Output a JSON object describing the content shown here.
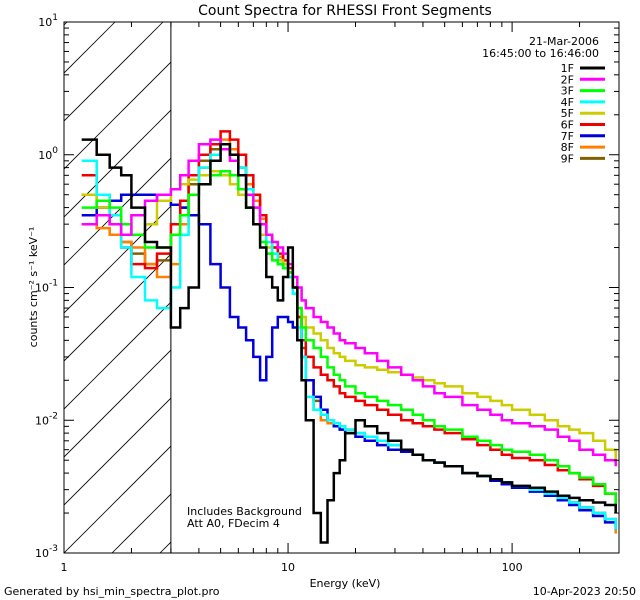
{
  "chart_data": {
    "type": "line",
    "title": "Count Spectra for RHESSI Front Segments",
    "xlabel": "Energy (keV)",
    "ylabel": "counts cm⁻² s⁻¹ keV⁻¹",
    "xscale": "log",
    "yscale": "log",
    "xlim": [
      1,
      300
    ],
    "ylim": [
      0.001,
      10
    ],
    "x_ticks": [
      {
        "v": 1,
        "label": "1"
      },
      {
        "v": 10,
        "label": "10"
      },
      {
        "v": 100,
        "label": "100"
      }
    ],
    "y_ticks": [
      {
        "v": 0.001,
        "base": "10",
        "exp": "-3"
      },
      {
        "v": 0.01,
        "base": "10",
        "exp": "-2"
      },
      {
        "v": 0.1,
        "base": "10",
        "exp": "-1"
      },
      {
        "v": 1,
        "base": "10",
        "exp": "0"
      },
      {
        "v": 10,
        "base": "10",
        "exp": "1"
      }
    ],
    "hatched_region": [
      1,
      3
    ],
    "date": "21-Mar-2006",
    "time_range": "16:45:00 to 16:46:00",
    "notes": [
      "Includes Background",
      "Att A0, FDecim 4"
    ],
    "series": [
      {
        "name": "1F",
        "color": "#000000",
        "x": [
          1.2,
          1.4,
          1.6,
          1.8,
          2.0,
          2.3,
          2.6,
          3.0,
          3.3,
          3.6,
          4.0,
          4.5,
          5.0,
          5.5,
          6.0,
          6.5,
          7.0,
          7.5,
          8.0,
          8.5,
          9.0,
          9.5,
          10.0,
          10.5,
          11.0,
          11.5,
          12.0,
          13,
          14,
          15,
          16,
          17,
          18,
          20,
          22,
          25,
          28,
          32,
          36,
          40,
          45,
          50,
          60,
          70,
          80,
          90,
          100,
          120,
          140,
          160,
          180,
          200,
          230,
          260,
          290
        ],
        "y": [
          1.3,
          1.0,
          0.8,
          0.7,
          0.4,
          0.22,
          0.2,
          0.05,
          0.07,
          0.1,
          0.6,
          0.9,
          1.2,
          1.0,
          0.7,
          0.4,
          0.3,
          0.2,
          0.12,
          0.1,
          0.08,
          0.12,
          0.2,
          0.1,
          0.04,
          0.02,
          0.01,
          0.002,
          0.0012,
          0.0025,
          0.004,
          0.005,
          0.008,
          0.01,
          0.009,
          0.008,
          0.007,
          0.006,
          0.0055,
          0.005,
          0.0048,
          0.0045,
          0.004,
          0.0038,
          0.0036,
          0.0034,
          0.0032,
          0.0031,
          0.0029,
          0.0027,
          0.0026,
          0.0025,
          0.0024,
          0.0023,
          0.002
        ]
      },
      {
        "name": "2F",
        "color": "#ff00ff",
        "x": [
          1.2,
          1.4,
          1.6,
          1.8,
          2.0,
          2.3,
          2.6,
          3.0,
          3.3,
          3.6,
          4.0,
          4.5,
          5.0,
          5.5,
          6.0,
          6.5,
          7.0,
          7.5,
          8.0,
          8.5,
          9.0,
          9.5,
          10.0,
          10.5,
          11.0,
          11.5,
          12.0,
          13,
          14,
          15,
          16,
          17,
          18,
          20,
          22,
          25,
          28,
          32,
          36,
          40,
          45,
          50,
          60,
          70,
          80,
          90,
          100,
          120,
          140,
          160,
          180,
          200,
          230,
          260,
          290
        ],
        "y": [
          0.3,
          0.35,
          0.3,
          0.25,
          0.35,
          0.45,
          0.5,
          0.55,
          0.7,
          0.9,
          1.2,
          1.3,
          1.1,
          0.9,
          0.7,
          0.5,
          0.4,
          0.3,
          0.25,
          0.22,
          0.2,
          0.18,
          0.15,
          0.12,
          0.1,
          0.08,
          0.07,
          0.06,
          0.055,
          0.05,
          0.045,
          0.04,
          0.038,
          0.035,
          0.032,
          0.028,
          0.025,
          0.022,
          0.02,
          0.018,
          0.016,
          0.015,
          0.013,
          0.012,
          0.011,
          0.01,
          0.0095,
          0.009,
          0.0085,
          0.0075,
          0.007,
          0.006,
          0.0055,
          0.005,
          0.0045
        ]
      },
      {
        "name": "3F",
        "color": "#00ff00",
        "x": [
          1.2,
          1.4,
          1.6,
          1.8,
          2.0,
          2.3,
          2.6,
          3.0,
          3.3,
          3.6,
          4.0,
          4.5,
          5.0,
          5.5,
          6.0,
          6.5,
          7.0,
          7.5,
          8.0,
          8.5,
          9.0,
          9.5,
          10.0,
          10.5,
          11.0,
          11.5,
          12.0,
          13,
          14,
          15,
          16,
          17,
          18,
          20,
          22,
          25,
          28,
          32,
          36,
          40,
          45,
          50,
          60,
          70,
          80,
          90,
          100,
          120,
          140,
          160,
          180,
          200,
          230,
          260,
          290
        ],
        "y": [
          0.4,
          0.45,
          0.4,
          0.3,
          0.25,
          0.2,
          0.2,
          0.25,
          0.35,
          0.5,
          0.6,
          0.7,
          0.75,
          0.7,
          0.55,
          0.4,
          0.3,
          0.22,
          0.18,
          0.16,
          0.15,
          0.14,
          0.13,
          0.1,
          0.07,
          0.05,
          0.04,
          0.035,
          0.03,
          0.025,
          0.022,
          0.02,
          0.018,
          0.016,
          0.015,
          0.014,
          0.013,
          0.012,
          0.011,
          0.01,
          0.009,
          0.0085,
          0.0075,
          0.007,
          0.0065,
          0.006,
          0.0058,
          0.0055,
          0.005,
          0.0045,
          0.004,
          0.0037,
          0.0033,
          0.0028,
          0.0022
        ]
      },
      {
        "name": "4F",
        "color": "#00ffff",
        "x": [
          1.2,
          1.4,
          1.6,
          1.8,
          2.0,
          2.3,
          2.6,
          3.0,
          3.3,
          3.6,
          4.0,
          4.5,
          5.0,
          5.5,
          6.0,
          6.5,
          7.0,
          7.5,
          8.0,
          8.5,
          9.0,
          9.5,
          10.0,
          10.5,
          11.0,
          11.5,
          12.0,
          13,
          14,
          15,
          16,
          17,
          18,
          20,
          22,
          25,
          28,
          32,
          36,
          40,
          45,
          50,
          60,
          70,
          80,
          90,
          100,
          120,
          140,
          160,
          180,
          200,
          230,
          260,
          290
        ],
        "y": [
          0.9,
          0.5,
          0.35,
          0.2,
          0.12,
          0.08,
          0.07,
          0.1,
          0.25,
          0.5,
          0.8,
          1.0,
          1.1,
          1.0,
          0.8,
          0.55,
          0.4,
          0.3,
          0.22,
          0.18,
          0.15,
          0.14,
          0.12,
          0.09,
          0.05,
          0.03,
          0.015,
          0.012,
          0.011,
          0.01,
          0.0095,
          0.009,
          0.0085,
          0.008,
          0.0075,
          0.007,
          0.0065,
          0.006,
          0.0055,
          0.005,
          0.0048,
          0.0045,
          0.004,
          0.0038,
          0.0036,
          0.0034,
          0.0032,
          0.003,
          0.0028,
          0.0026,
          0.0024,
          0.0022,
          0.002,
          0.0018,
          0.0015
        ]
      },
      {
        "name": "5F",
        "color": "#cccc00",
        "x": [
          1.2,
          1.4,
          1.6,
          1.8,
          2.0,
          2.3,
          2.6,
          3.0,
          3.3,
          3.6,
          4.0,
          4.5,
          5.0,
          5.5,
          6.0,
          6.5,
          7.0,
          7.5,
          8.0,
          8.5,
          9.0,
          9.5,
          10.0,
          10.5,
          11.0,
          11.5,
          12.0,
          13,
          14,
          15,
          16,
          17,
          18,
          20,
          22,
          25,
          28,
          32,
          36,
          40,
          45,
          50,
          60,
          70,
          80,
          90,
          100,
          120,
          140,
          160,
          180,
          200,
          230,
          260,
          290
        ],
        "y": [
          0.5,
          0.4,
          0.3,
          0.25,
          0.25,
          0.3,
          0.45,
          0.55,
          0.6,
          0.65,
          0.7,
          0.75,
          0.7,
          0.6,
          0.5,
          0.4,
          0.3,
          0.25,
          0.2,
          0.18,
          0.16,
          0.15,
          0.12,
          0.09,
          0.07,
          0.06,
          0.05,
          0.045,
          0.04,
          0.035,
          0.032,
          0.03,
          0.028,
          0.026,
          0.025,
          0.024,
          0.023,
          0.022,
          0.021,
          0.02,
          0.019,
          0.018,
          0.016,
          0.015,
          0.014,
          0.013,
          0.012,
          0.011,
          0.01,
          0.009,
          0.0085,
          0.008,
          0.007,
          0.006,
          0.005
        ]
      },
      {
        "name": "6F",
        "color": "#ee0000",
        "x": [
          1.2,
          1.4,
          1.6,
          1.8,
          2.0,
          2.3,
          2.6,
          3.0,
          3.3,
          3.6,
          4.0,
          4.5,
          5.0,
          5.5,
          6.0,
          6.5,
          7.0,
          7.5,
          8.0,
          8.5,
          9.0,
          9.5,
          10.0,
          10.5,
          11.0,
          11.5,
          12.0,
          13,
          14,
          15,
          16,
          17,
          18,
          20,
          22,
          25,
          28,
          32,
          36,
          40,
          45,
          50,
          60,
          70,
          80,
          90,
          100,
          120,
          140,
          160,
          180,
          200,
          230,
          260,
          290
        ],
        "y": [
          0.7,
          0.5,
          0.3,
          0.2,
          0.15,
          0.14,
          0.18,
          0.3,
          0.45,
          0.7,
          1.0,
          1.2,
          1.5,
          1.3,
          1.0,
          0.7,
          0.5,
          0.35,
          0.25,
          0.2,
          0.18,
          0.16,
          0.14,
          0.1,
          0.06,
          0.04,
          0.03,
          0.025,
          0.022,
          0.02,
          0.018,
          0.016,
          0.015,
          0.014,
          0.013,
          0.012,
          0.011,
          0.01,
          0.0095,
          0.009,
          0.0085,
          0.008,
          0.0072,
          0.0065,
          0.006,
          0.0055,
          0.0052,
          0.005,
          0.0046,
          0.0042,
          0.004,
          0.0036,
          0.0032,
          0.0028,
          0.0022
        ]
      },
      {
        "name": "7F",
        "color": "#0000dd",
        "x": [
          1.2,
          1.4,
          1.6,
          1.8,
          2.0,
          2.3,
          2.6,
          3.0,
          3.3,
          3.6,
          4.0,
          4.5,
          5.0,
          5.5,
          6.0,
          6.5,
          7.0,
          7.5,
          8.0,
          8.5,
          9.0,
          9.5,
          10.0,
          10.5,
          11.0,
          11.5,
          12.0,
          13,
          14,
          15,
          16,
          17,
          18,
          20,
          22,
          25,
          28,
          32,
          36,
          40,
          45,
          50,
          60,
          70,
          80,
          90,
          100,
          120,
          140,
          160,
          180,
          200,
          230,
          260,
          290
        ],
        "y": [
          0.35,
          0.4,
          0.45,
          0.5,
          0.5,
          0.5,
          0.45,
          0.42,
          0.4,
          0.35,
          0.3,
          0.15,
          0.1,
          0.06,
          0.05,
          0.04,
          0.03,
          0.02,
          0.03,
          0.05,
          0.06,
          0.06,
          0.055,
          0.05,
          0.04,
          0.03,
          0.02,
          0.015,
          0.012,
          0.01,
          0.009,
          0.0085,
          0.008,
          0.0075,
          0.007,
          0.0065,
          0.006,
          0.0058,
          0.0055,
          0.005,
          0.0048,
          0.0045,
          0.004,
          0.0038,
          0.0035,
          0.0033,
          0.0031,
          0.0029,
          0.0027,
          0.0025,
          0.0023,
          0.0021,
          0.0019,
          0.0017,
          0.0015
        ]
      },
      {
        "name": "8F",
        "color": "#ff8000",
        "x": [
          1.2,
          1.4,
          1.6,
          1.8,
          2.0,
          2.3,
          2.6,
          3.0,
          3.3,
          3.6,
          4.0,
          4.5,
          5.0,
          5.5,
          6.0,
          6.5,
          7.0,
          7.5,
          8.0,
          8.5,
          9.0,
          9.5,
          10.0,
          10.5,
          11.0,
          11.5,
          12.0,
          13,
          14,
          15,
          16,
          17,
          18,
          20,
          22,
          25,
          28,
          32,
          36,
          40,
          45,
          50,
          60,
          70,
          80,
          90,
          100,
          120,
          140,
          160,
          180,
          200,
          230,
          260,
          290
        ],
        "y": [
          0.3,
          0.28,
          0.25,
          0.22,
          0.2,
          0.15,
          0.12,
          0.15,
          0.3,
          0.5,
          0.8,
          1.0,
          1.3,
          1.1,
          0.8,
          0.6,
          0.45,
          0.33,
          0.25,
          0.2,
          0.17,
          0.15,
          0.13,
          0.1,
          0.06,
          0.03,
          0.02,
          0.012,
          0.01,
          0.0095,
          0.009,
          0.0085,
          0.008,
          0.0075,
          0.007,
          0.0065,
          0.006,
          0.0058,
          0.0055,
          0.005,
          0.0048,
          0.0045,
          0.004,
          0.0038,
          0.0036,
          0.0034,
          0.0032,
          0.003,
          0.0028,
          0.0026,
          0.0024,
          0.0022,
          0.002,
          0.0018,
          0.0014
        ]
      },
      {
        "name": "9F",
        "color": "#806000",
        "x": [
          1.2,
          1.4,
          1.6,
          1.8,
          2.0,
          2.3,
          2.6,
          3.0,
          3.3,
          3.6,
          4.0,
          4.5,
          5.0,
          5.5,
          6.0,
          6.5,
          7.0,
          7.5,
          8.0,
          8.5,
          9.0,
          9.5,
          10.0,
          10.5,
          11.0,
          11.5,
          12.0,
          13,
          14,
          15,
          16,
          17,
          18,
          20,
          22,
          25,
          28,
          32,
          36,
          40,
          45,
          50,
          60,
          70,
          80,
          90,
          100,
          120,
          140,
          160,
          180,
          200,
          230,
          260,
          290
        ],
        "y": [
          0.5,
          0.4,
          0.3,
          0.22,
          0.18,
          0.15,
          0.16,
          0.25,
          0.4,
          0.6,
          0.9,
          1.1,
          1.2,
          1.0,
          0.8,
          0.6,
          0.45,
          0.33,
          0.25,
          0.2,
          0.17,
          0.15,
          0.13,
          0.1,
          0.06,
          0.035,
          0.02,
          0.014,
          0.011,
          0.01,
          0.0095,
          0.009,
          0.0085,
          0.008,
          0.0075,
          0.007,
          0.0065,
          0.006,
          0.0055,
          0.005,
          0.0048,
          0.0045,
          0.004,
          0.0038,
          0.0036,
          0.0034,
          0.0032,
          0.003,
          0.0028,
          0.0026,
          0.0024,
          0.0022,
          0.002,
          0.0018,
          0.0015
        ]
      }
    ]
  },
  "footer": {
    "generated_by": "Generated by hsi_min_spectra_plot.pro",
    "timestamp": "10-Apr-2023 20:50"
  }
}
